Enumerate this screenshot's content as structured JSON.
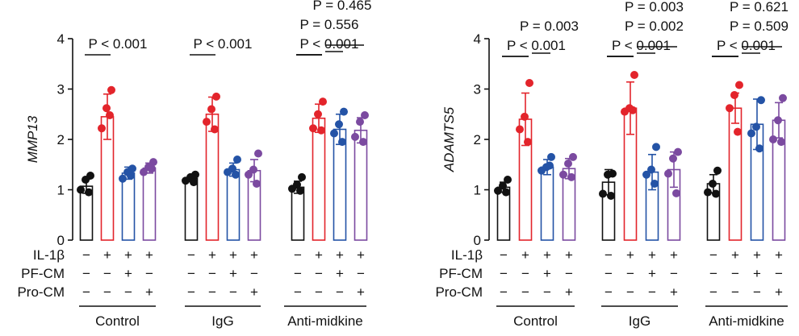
{
  "chart_data": [
    {
      "type": "bar",
      "id": "left",
      "ylabel": "MMP13",
      "ylim": [
        0,
        4
      ],
      "yticks": [
        "0",
        "1",
        "2",
        "3",
        "4"
      ],
      "colors": [
        "#111111",
        "#e3242b",
        "#2453a6",
        "#7b4aa0"
      ],
      "conditions": [
        "IL-1β",
        "PF-CM",
        "Pro-CM"
      ],
      "signs": [
        [
          "−",
          "+",
          "+",
          "+"
        ],
        [
          "−",
          "−",
          "+",
          "−"
        ],
        [
          "−",
          "−",
          "−",
          "+"
        ]
      ],
      "groups": [
        {
          "name": "Control",
          "means": [
            1.07,
            2.45,
            1.33,
            1.43
          ],
          "sds": [
            0.14,
            0.45,
            0.12,
            0.1
          ],
          "points": [
            [
              1.28,
              1.2,
              1.0,
              0.95
            ],
            [
              2.98,
              2.62,
              2.22,
              2.48
            ],
            [
              1.42,
              1.35,
              1.22,
              1.28
            ],
            [
              1.55,
              1.45,
              1.35,
              1.42
            ]
          ]
        },
        {
          "name": "IgG",
          "means": [
            1.22,
            2.5,
            1.4,
            1.38
          ],
          "sds": [
            0.06,
            0.34,
            0.13,
            0.22
          ],
          "points": [
            [
              1.3,
              1.25,
              1.18,
              1.15
            ],
            [
              2.85,
              2.6,
              2.35,
              2.2
            ],
            [
              1.6,
              1.42,
              1.35,
              1.3
            ],
            [
              1.72,
              1.4,
              1.3,
              1.12
            ]
          ]
        },
        {
          "name": "Anti-midkine",
          "means": [
            1.05,
            2.42,
            2.2,
            2.18
          ],
          "sds": [
            0.12,
            0.28,
            0.3,
            0.25
          ],
          "points": [
            [
              1.25,
              1.1,
              1.02,
              0.98
            ],
            [
              2.75,
              2.5,
              2.22,
              2.18
            ],
            [
              2.55,
              2.3,
              2.12,
              1.95
            ],
            [
              2.48,
              2.35,
              2.05,
              1.95
            ]
          ]
        }
      ],
      "annotations": [
        {
          "group": 0,
          "texts": [
            "P < 0.001"
          ]
        },
        {
          "group": 1,
          "texts": [
            "P < 0.001"
          ]
        },
        {
          "group": 2,
          "texts": [
            "P < 0.001",
            "P = 0.556",
            "P = 0.465"
          ]
        }
      ]
    },
    {
      "type": "bar",
      "id": "right",
      "ylabel": "ADAMTS5",
      "ylim": [
        0,
        4
      ],
      "yticks": [
        "0",
        "1",
        "2",
        "3",
        "4"
      ],
      "colors": [
        "#111111",
        "#e3242b",
        "#2453a6",
        "#7b4aa0"
      ],
      "conditions": [
        "IL-1β",
        "PF-CM",
        "Pro-CM"
      ],
      "signs": [
        [
          "−",
          "+",
          "+",
          "+"
        ],
        [
          "−",
          "−",
          "+",
          "−"
        ],
        [
          "−",
          "−",
          "−",
          "+"
        ]
      ],
      "groups": [
        {
          "name": "Control",
          "means": [
            1.05,
            2.4,
            1.45,
            1.42
          ],
          "sds": [
            0.1,
            0.52,
            0.15,
            0.2
          ],
          "points": [
            [
              1.2,
              1.08,
              0.98,
              0.95
            ],
            [
              3.12,
              2.45,
              2.2,
              1.95
            ],
            [
              1.65,
              1.45,
              1.38,
              1.48
            ],
            [
              1.65,
              1.52,
              1.3,
              1.25
            ]
          ]
        },
        {
          "name": "IgG",
          "means": [
            1.15,
            2.62,
            1.35,
            1.4
          ],
          "sds": [
            0.25,
            0.52,
            0.35,
            0.35
          ],
          "points": [
            [
              1.32,
              1.3,
              0.92,
              0.88
            ],
            [
              3.28,
              2.62,
              2.55,
              2.58
            ],
            [
              1.85,
              1.4,
              1.3,
              1.12
            ],
            [
              1.75,
              1.62,
              1.32,
              0.93
            ]
          ]
        },
        {
          "name": "Anti-midkine",
          "means": [
            1.12,
            2.62,
            2.3,
            2.38
          ],
          "sds": [
            0.18,
            0.3,
            0.5,
            0.35
          ],
          "points": [
            [
              1.38,
              1.12,
              0.95,
              0.92
            ],
            [
              3.08,
              2.88,
              2.62,
              2.15
            ],
            [
              2.78,
              2.25,
              2.12,
              1.82
            ],
            [
              2.82,
              2.38,
              2.0,
              1.95
            ]
          ]
        }
      ],
      "annotations": [
        {
          "group": 0,
          "texts": [
            "P < 0.001",
            "P = 0.003"
          ]
        },
        {
          "group": 1,
          "texts": [
            "P < 0.001",
            "P = 0.002",
            "P = 0.003"
          ]
        },
        {
          "group": 2,
          "texts": [
            "P < 0.001",
            "P = 0.509",
            "P = 0.621"
          ]
        }
      ]
    }
  ]
}
